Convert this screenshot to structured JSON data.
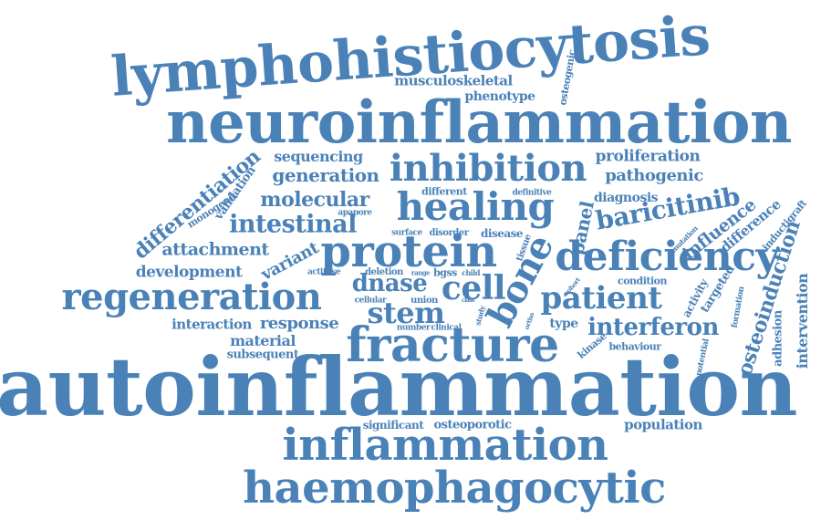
{
  "colors": {
    "word": "#4a82b8",
    "background": "#ffffff"
  },
  "words": [
    "lymphohistiocytosis",
    "neuroinflammation",
    "autoinflammation",
    "inflammation",
    "haemophagocytic",
    "fracture",
    "protein",
    "deficiency",
    "healing",
    "inhibition",
    "regeneration",
    "patient",
    "bone",
    "cell",
    "stem",
    "dnase",
    "baricitinib",
    "interferon",
    "osteoinduction",
    "intestinal",
    "molecular",
    "generation",
    "sequencing",
    "differentiation",
    "attachment",
    "development",
    "variant",
    "response",
    "interaction",
    "material",
    "subsequent",
    "pathogenic",
    "proliferation",
    "diagnosis",
    "influence",
    "difference",
    "panel",
    "population",
    "osteoporotic",
    "significant",
    "musculoskeletal",
    "phenotype",
    "osteogenic",
    "intervention",
    "adhesion",
    "inductigraft",
    "targeted",
    "activity",
    "behaviour",
    "kinase",
    "potential",
    "formation",
    "mutation",
    "condition",
    "type",
    "validation",
    "monogenic",
    "different",
    "definitive",
    "apapore",
    "surface",
    "disorder",
    "disease",
    "tissue",
    "deletion",
    "range",
    "bgss",
    "child",
    "actifuse",
    "cellular",
    "union",
    "number",
    "clinical",
    "study",
    "class",
    "ortho",
    "cohort"
  ]
}
